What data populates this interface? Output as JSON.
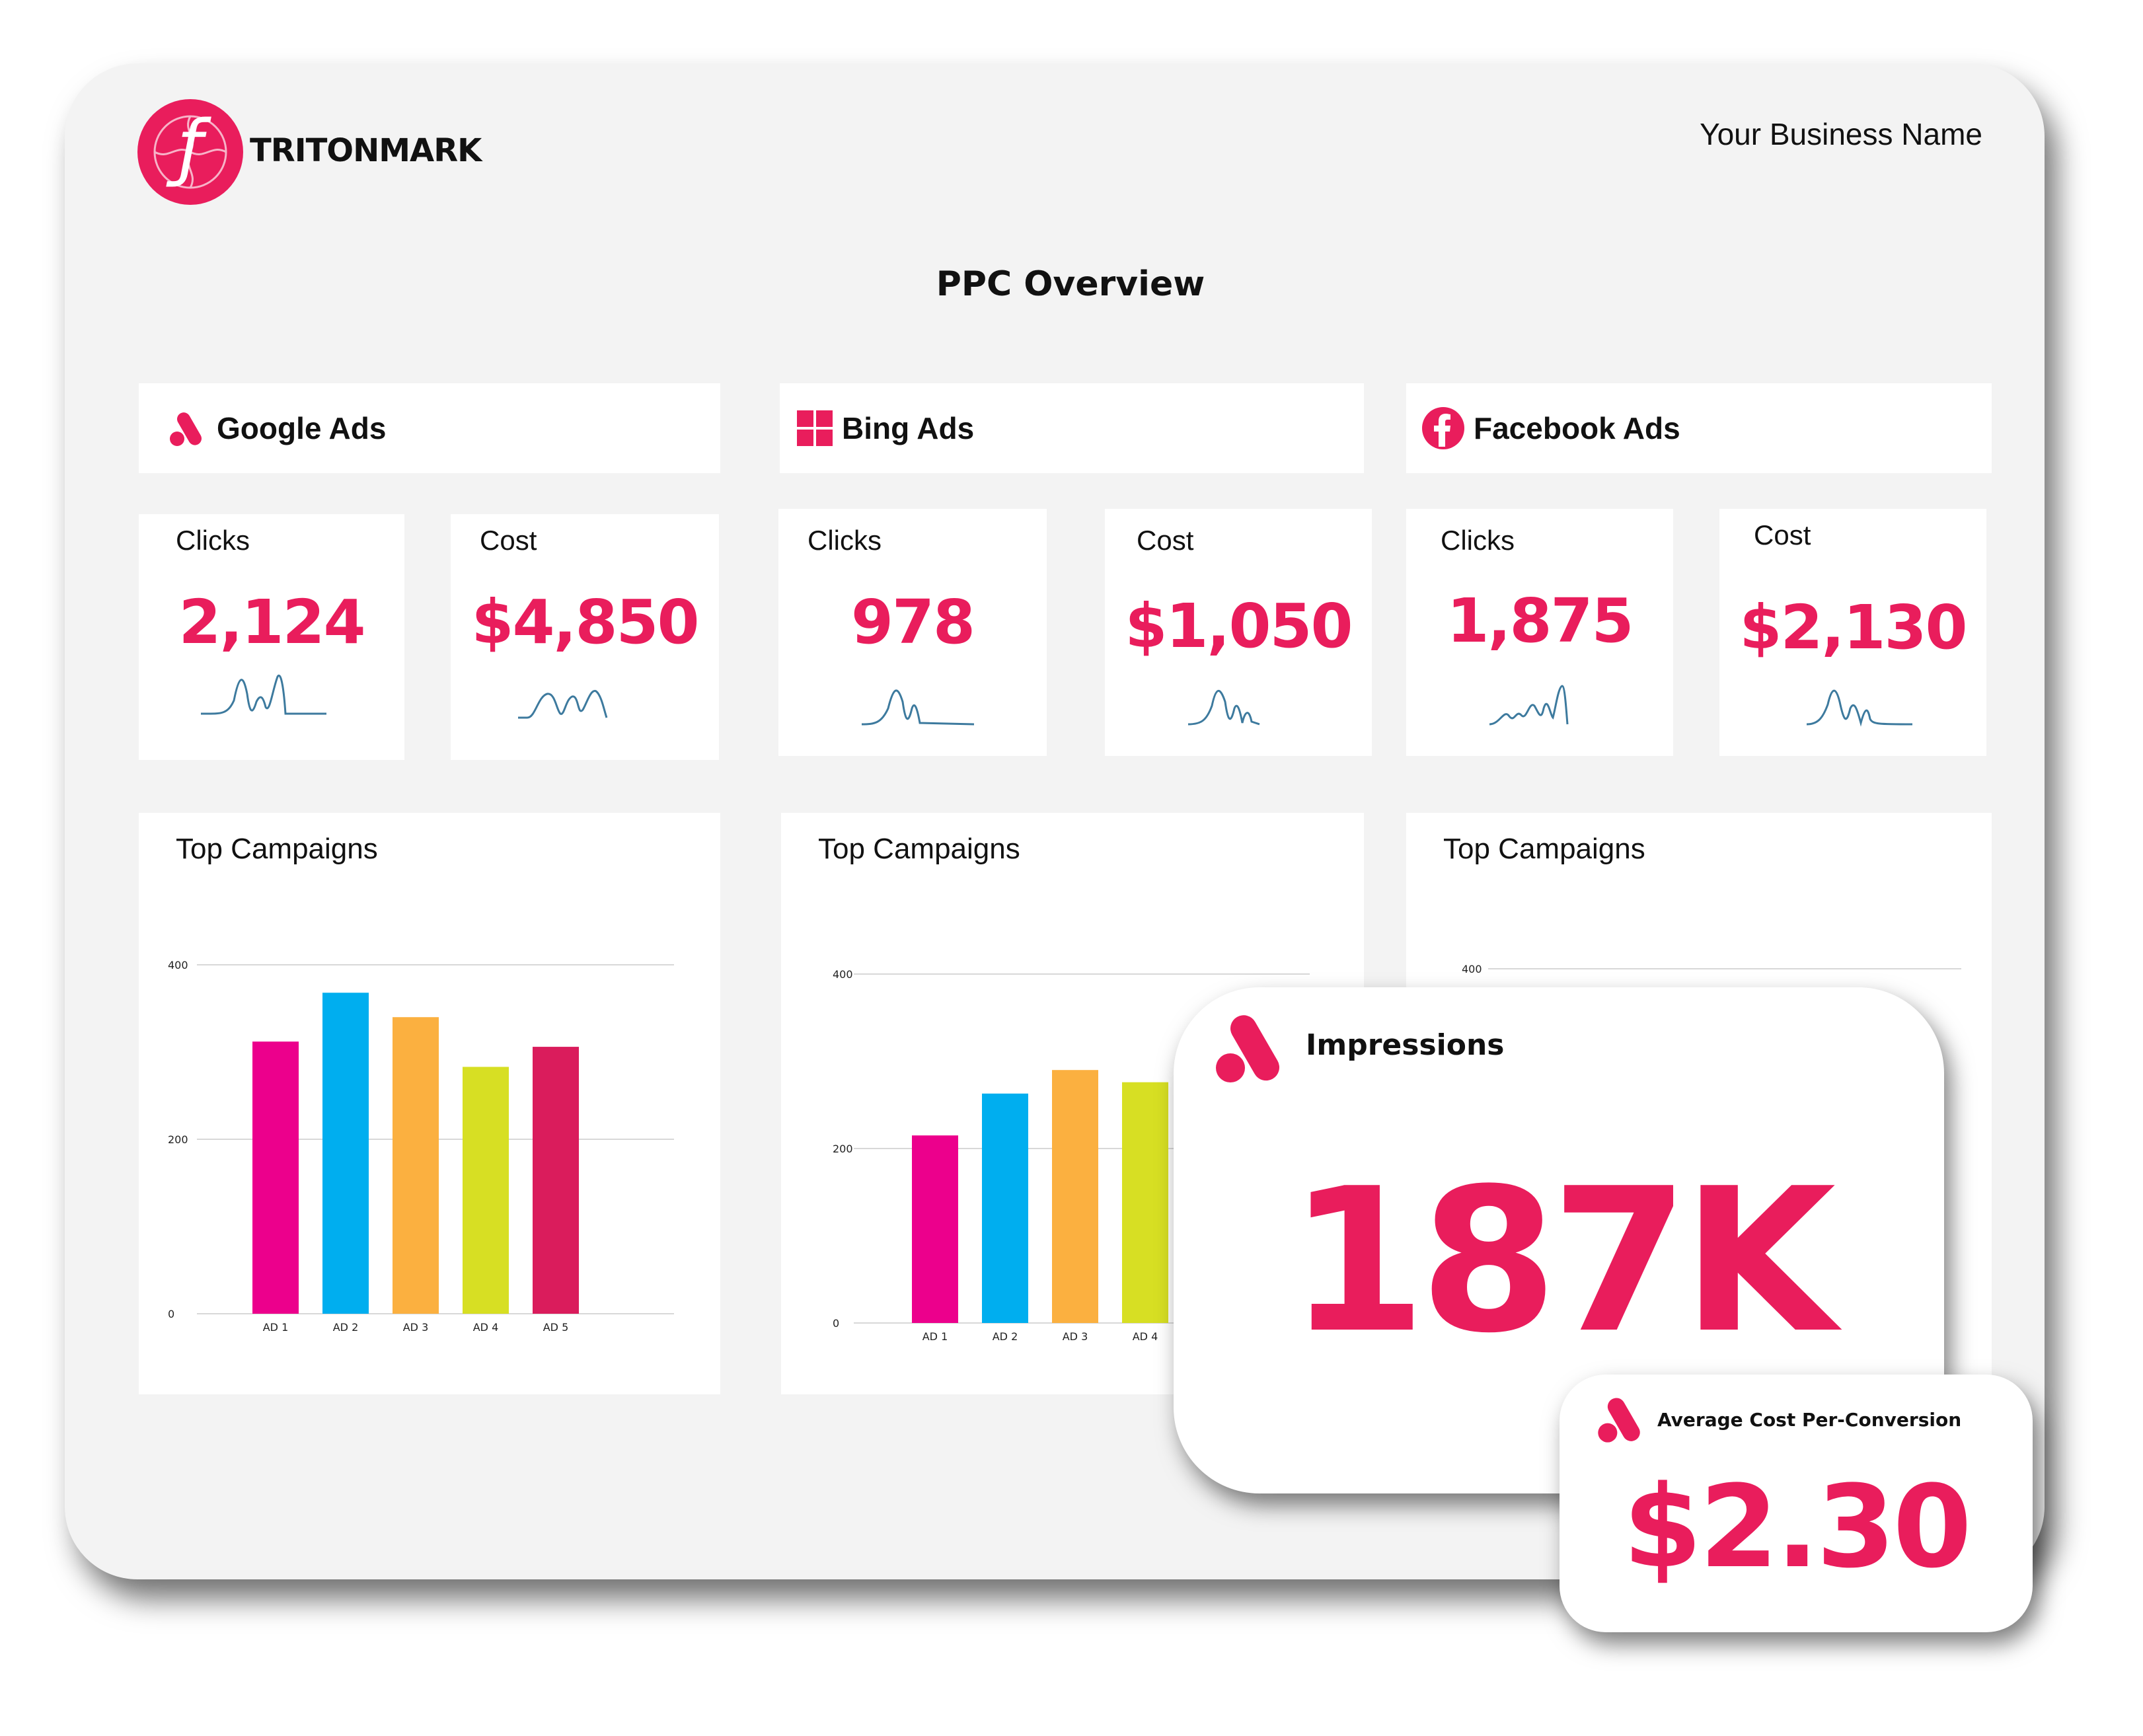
{
  "brand": {
    "name": "TRITONMARK",
    "color": "#e91d5c"
  },
  "header": {
    "business_name": "Your Business Name",
    "title": "PPC Overview"
  },
  "platforms": [
    {
      "name": "Google Ads",
      "icon": "google-ads-icon",
      "clicks_label": "Clicks",
      "clicks_value": "2,124",
      "cost_label": "Cost",
      "cost_value": "$4,850",
      "campaigns_title": "Top Campaigns"
    },
    {
      "name": "Bing Ads",
      "icon": "bing-windows-icon",
      "clicks_label": "Clicks",
      "clicks_value": "978",
      "cost_label": "Cost",
      "cost_value": "$1,050",
      "campaigns_title": "Top Campaigns"
    },
    {
      "name": "Facebook Ads",
      "icon": "facebook-icon",
      "clicks_label": "Clicks",
      "clicks_value": "1,875",
      "cost_label": "Cost",
      "cost_value": "$2,130",
      "campaigns_title": "Top Campaigns"
    }
  ],
  "chart_data": [
    {
      "type": "bar",
      "categories": [
        "AD 1",
        "AD 2",
        "AD 3",
        "AD 4",
        "AD 5"
      ],
      "values": [
        312,
        368,
        340,
        283,
        306
      ],
      "colors": [
        "#ec008c",
        "#00aeef",
        "#fbb040",
        "#d7df23",
        "#da1c5c"
      ],
      "yticks": [
        "0",
        "200",
        "400"
      ],
      "ylim": [
        0,
        400
      ],
      "grid": true
    },
    {
      "type": "bar",
      "categories": [
        "AD 1",
        "AD 2",
        "AD 3",
        "AD 4"
      ],
      "values": [
        215,
        263,
        290,
        276
      ],
      "colors": [
        "#ec008c",
        "#00aeef",
        "#fbb040",
        "#d7df23"
      ],
      "yticks": [
        "0",
        "200",
        "400"
      ],
      "ylim": [
        0,
        400
      ],
      "grid": true
    },
    {
      "type": "bar",
      "categories": [],
      "values": [],
      "colors": [],
      "yticks": [
        "400"
      ],
      "ylim": [
        0,
        400
      ],
      "grid": true
    }
  ],
  "impressions": {
    "label": "Impressions",
    "value": "187K"
  },
  "avg_cost_per_conversion": {
    "label": "Average Cost Per-Conversion",
    "value": "$2.30"
  }
}
